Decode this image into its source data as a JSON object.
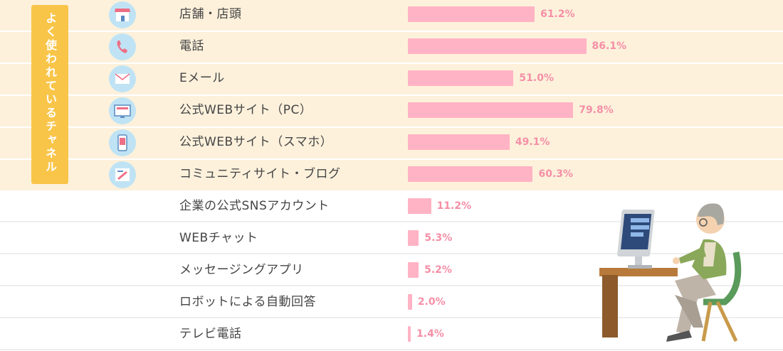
{
  "highlight_tag": "よく使われているチャネル",
  "colors": {
    "highlight_band": "#fdf1dc",
    "tag": "#f9c549",
    "bar": "#ffb3c4",
    "value_text": "#f58fa6",
    "icon_bg": "#bfe3f4"
  },
  "chart_data": {
    "type": "bar",
    "orientation": "horizontal",
    "title": "",
    "xlabel": "",
    "ylabel": "",
    "xlim": [
      0,
      100
    ],
    "unit": "%",
    "categories": [
      "店舗・店頭",
      "電話",
      "Eメール",
      "公式WEBサイト（PC）",
      "公式WEBサイト（スマホ）",
      "コミュニティサイト・ブログ",
      "企業の公式SNSアカウント",
      "WEBチャット",
      "メッセージングアプリ",
      "ロボットによる自動回答",
      "テレビ電話"
    ],
    "values": [
      61.2,
      86.1,
      51.0,
      79.8,
      49.1,
      60.3,
      11.2,
      5.3,
      5.2,
      2.0,
      1.4
    ],
    "value_labels": [
      "61.2%",
      "86.1%",
      "51.0%",
      "79.8%",
      "49.1%",
      "60.3%",
      "11.2%",
      "5.3%",
      "5.2%",
      "2.0%",
      "1.4%"
    ],
    "highlighted_count": 6,
    "icons": [
      "store-icon",
      "phone-icon",
      "mail-icon",
      "pc-monitor-icon",
      "smartphone-icon",
      "blog-icon"
    ]
  }
}
